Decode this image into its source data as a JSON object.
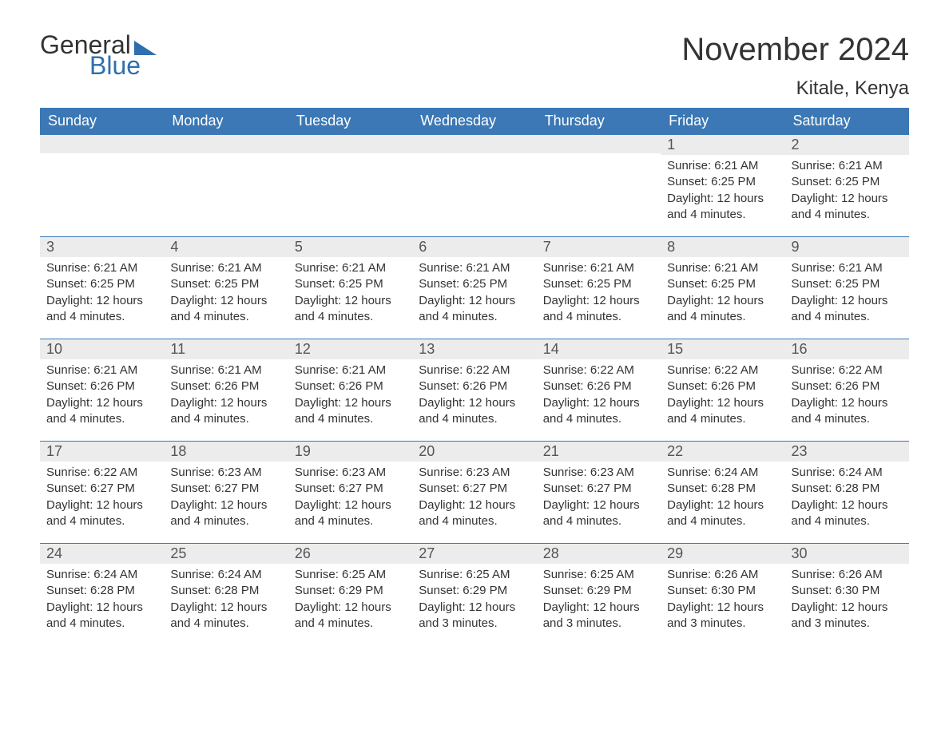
{
  "logo": {
    "text1": "General",
    "text2": "Blue"
  },
  "title": "November 2024",
  "location": "Kitale, Kenya",
  "colors": {
    "header_bg": "#3b78b5",
    "header_text": "#ffffff",
    "daynum_bg": "#ececec",
    "border": "#3b78b5",
    "logo_accent": "#2f6fb0",
    "body_text": "#333333"
  },
  "weekdays": [
    "Sunday",
    "Monday",
    "Tuesday",
    "Wednesday",
    "Thursday",
    "Friday",
    "Saturday"
  ],
  "weeks": [
    [
      null,
      null,
      null,
      null,
      null,
      {
        "n": "1",
        "sr": "6:21 AM",
        "ss": "6:25 PM",
        "dl": "12 hours and 4 minutes."
      },
      {
        "n": "2",
        "sr": "6:21 AM",
        "ss": "6:25 PM",
        "dl": "12 hours and 4 minutes."
      }
    ],
    [
      {
        "n": "3",
        "sr": "6:21 AM",
        "ss": "6:25 PM",
        "dl": "12 hours and 4 minutes."
      },
      {
        "n": "4",
        "sr": "6:21 AM",
        "ss": "6:25 PM",
        "dl": "12 hours and 4 minutes."
      },
      {
        "n": "5",
        "sr": "6:21 AM",
        "ss": "6:25 PM",
        "dl": "12 hours and 4 minutes."
      },
      {
        "n": "6",
        "sr": "6:21 AM",
        "ss": "6:25 PM",
        "dl": "12 hours and 4 minutes."
      },
      {
        "n": "7",
        "sr": "6:21 AM",
        "ss": "6:25 PM",
        "dl": "12 hours and 4 minutes."
      },
      {
        "n": "8",
        "sr": "6:21 AM",
        "ss": "6:25 PM",
        "dl": "12 hours and 4 minutes."
      },
      {
        "n": "9",
        "sr": "6:21 AM",
        "ss": "6:25 PM",
        "dl": "12 hours and 4 minutes."
      }
    ],
    [
      {
        "n": "10",
        "sr": "6:21 AM",
        "ss": "6:26 PM",
        "dl": "12 hours and 4 minutes."
      },
      {
        "n": "11",
        "sr": "6:21 AM",
        "ss": "6:26 PM",
        "dl": "12 hours and 4 minutes."
      },
      {
        "n": "12",
        "sr": "6:21 AM",
        "ss": "6:26 PM",
        "dl": "12 hours and 4 minutes."
      },
      {
        "n": "13",
        "sr": "6:22 AM",
        "ss": "6:26 PM",
        "dl": "12 hours and 4 minutes."
      },
      {
        "n": "14",
        "sr": "6:22 AM",
        "ss": "6:26 PM",
        "dl": "12 hours and 4 minutes."
      },
      {
        "n": "15",
        "sr": "6:22 AM",
        "ss": "6:26 PM",
        "dl": "12 hours and 4 minutes."
      },
      {
        "n": "16",
        "sr": "6:22 AM",
        "ss": "6:26 PM",
        "dl": "12 hours and 4 minutes."
      }
    ],
    [
      {
        "n": "17",
        "sr": "6:22 AM",
        "ss": "6:27 PM",
        "dl": "12 hours and 4 minutes."
      },
      {
        "n": "18",
        "sr": "6:23 AM",
        "ss": "6:27 PM",
        "dl": "12 hours and 4 minutes."
      },
      {
        "n": "19",
        "sr": "6:23 AM",
        "ss": "6:27 PM",
        "dl": "12 hours and 4 minutes."
      },
      {
        "n": "20",
        "sr": "6:23 AM",
        "ss": "6:27 PM",
        "dl": "12 hours and 4 minutes."
      },
      {
        "n": "21",
        "sr": "6:23 AM",
        "ss": "6:27 PM",
        "dl": "12 hours and 4 minutes."
      },
      {
        "n": "22",
        "sr": "6:24 AM",
        "ss": "6:28 PM",
        "dl": "12 hours and 4 minutes."
      },
      {
        "n": "23",
        "sr": "6:24 AM",
        "ss": "6:28 PM",
        "dl": "12 hours and 4 minutes."
      }
    ],
    [
      {
        "n": "24",
        "sr": "6:24 AM",
        "ss": "6:28 PM",
        "dl": "12 hours and 4 minutes."
      },
      {
        "n": "25",
        "sr": "6:24 AM",
        "ss": "6:28 PM",
        "dl": "12 hours and 4 minutes."
      },
      {
        "n": "26",
        "sr": "6:25 AM",
        "ss": "6:29 PM",
        "dl": "12 hours and 4 minutes."
      },
      {
        "n": "27",
        "sr": "6:25 AM",
        "ss": "6:29 PM",
        "dl": "12 hours and 3 minutes."
      },
      {
        "n": "28",
        "sr": "6:25 AM",
        "ss": "6:29 PM",
        "dl": "12 hours and 3 minutes."
      },
      {
        "n": "29",
        "sr": "6:26 AM",
        "ss": "6:30 PM",
        "dl": "12 hours and 3 minutes."
      },
      {
        "n": "30",
        "sr": "6:26 AM",
        "ss": "6:30 PM",
        "dl": "12 hours and 3 minutes."
      }
    ]
  ],
  "labels": {
    "sunrise": "Sunrise: ",
    "sunset": "Sunset: ",
    "daylight": "Daylight: "
  }
}
